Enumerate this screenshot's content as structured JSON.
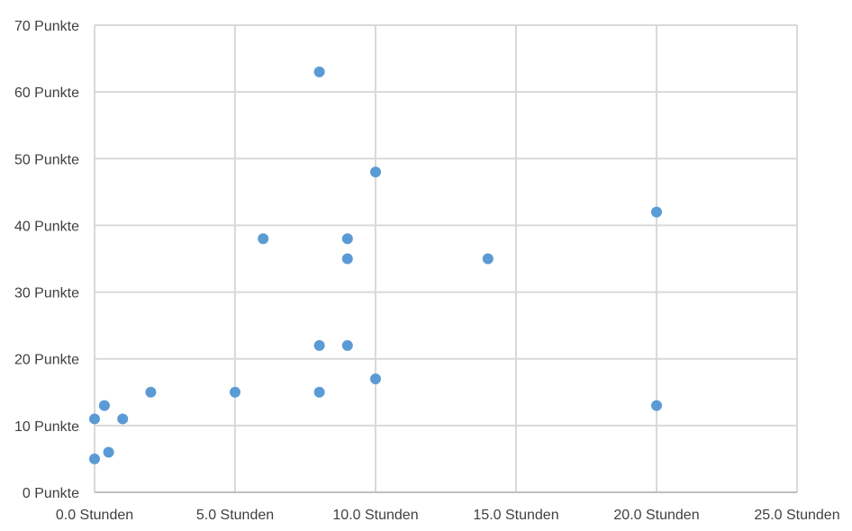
{
  "chart_data": {
    "type": "scatter",
    "title": "",
    "xlabel": "",
    "ylabel": "",
    "xlim": [
      0,
      25
    ],
    "ylim": [
      0,
      70
    ],
    "x_ticks": [
      {
        "value": 0,
        "label": "0.0 Stunden"
      },
      {
        "value": 5,
        "label": "5.0 Stunden"
      },
      {
        "value": 10,
        "label": "10.0 Stunden"
      },
      {
        "value": 15,
        "label": "15.0 Stunden"
      },
      {
        "value": 20,
        "label": "20.0 Stunden"
      },
      {
        "value": 25,
        "label": "25.0 Stunden"
      }
    ],
    "y_ticks": [
      {
        "value": 0,
        "label": "0 Punkte"
      },
      {
        "value": 10,
        "label": "10 Punkte"
      },
      {
        "value": 20,
        "label": "20 Punkte"
      },
      {
        "value": 30,
        "label": "30 Punkte"
      },
      {
        "value": 40,
        "label": "40 Punkte"
      },
      {
        "value": 50,
        "label": "50 Punkte"
      },
      {
        "value": 60,
        "label": "60 Punkte"
      },
      {
        "value": 70,
        "label": "70 Punkte"
      }
    ],
    "grid": true,
    "legend": "none",
    "series": [
      {
        "color": "#5b9bd5",
        "points": [
          {
            "x": 8,
            "y": 63
          },
          {
            "x": 10,
            "y": 48
          },
          {
            "x": 20,
            "y": 42
          },
          {
            "x": 6,
            "y": 38
          },
          {
            "x": 9,
            "y": 38
          },
          {
            "x": 9,
            "y": 35
          },
          {
            "x": 14,
            "y": 35
          },
          {
            "x": 8,
            "y": 22
          },
          {
            "x": 9,
            "y": 22
          },
          {
            "x": 10,
            "y": 17
          },
          {
            "x": 2,
            "y": 15
          },
          {
            "x": 5,
            "y": 15
          },
          {
            "x": 8,
            "y": 15
          },
          {
            "x": 0.35,
            "y": 13
          },
          {
            "x": 20,
            "y": 13
          },
          {
            "x": 0,
            "y": 11
          },
          {
            "x": 1,
            "y": 11
          },
          {
            "x": 0.5,
            "y": 6
          },
          {
            "x": 0,
            "y": 5
          }
        ]
      }
    ]
  }
}
